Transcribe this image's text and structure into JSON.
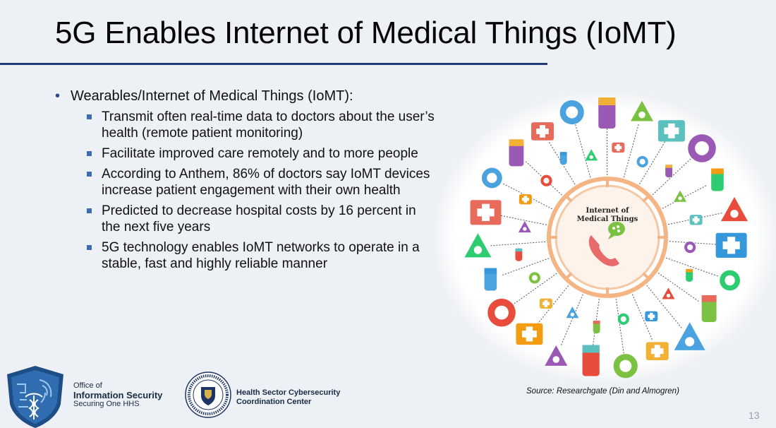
{
  "slide": {
    "title": "5G Enables Internet of Medical Things (IoMT)",
    "page_number": "13",
    "source": "Source: Researchgate (Din and Almogren)"
  },
  "bullets": {
    "main": "Wearables/Internet of Medical Things (IoMT):",
    "sub": [
      "Transmit often real-time data to doctors about the user’s health (remote patient monitoring)",
      "Facilitate improved care remotely and to more people",
      "According to Anthem, 86% of doctors say IoMT devices increase patient engagement with their own health",
      "Predicted to decrease hospital costs by 16 percent in the next five years",
      "5G technology enables IoMT networks to operate in a stable, fast and highly reliable manner"
    ]
  },
  "diagram": {
    "center_line1": "Internet of",
    "center_line2": "Medical Things",
    "colors": {
      "ring": "#f4b484",
      "accent": "#e86a5a",
      "bubble": "#7cc242"
    }
  },
  "footer": {
    "oinfo_line1": "Office of",
    "oinfo_line2": "Information Security",
    "oinfo_line3": "Securing One HHS",
    "hsc_line1": "Health Sector Cybersecurity",
    "hsc_line2": "Coordination Center"
  }
}
